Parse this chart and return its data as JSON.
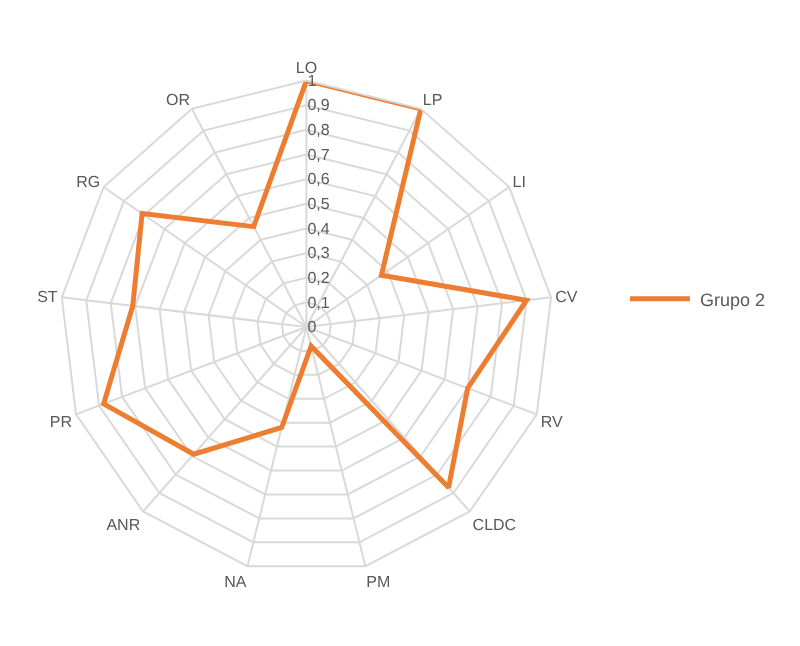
{
  "chart_data": {
    "type": "radar",
    "categories": [
      "LO",
      "LP",
      "LI",
      "CV",
      "RV",
      "CLDC",
      "PM",
      "NA",
      "ANR",
      "PR",
      "ST",
      "RG",
      "OR"
    ],
    "series": [
      {
        "name": "Grupo 2",
        "color": "#ed7d31",
        "values": [
          1,
          1,
          0.37,
          0.9,
          0.7,
          0.87,
          0.08,
          0.42,
          0.69,
          0.88,
          0.71,
          0.81,
          0.46
        ]
      }
    ],
    "ylim": [
      0,
      1
    ],
    "yticks": [
      0,
      {
        "value": 0.1,
        "label": "0,1"
      },
      {
        "value": 0.2,
        "label": "0,2"
      },
      {
        "value": 0.3,
        "label": "0,3"
      },
      {
        "value": 0.4,
        "label": "0,4"
      },
      {
        "value": 0.5,
        "label": "0,5"
      },
      {
        "value": 0.6,
        "label": "0,6"
      },
      {
        "value": 0.7,
        "label": "0,7"
      },
      {
        "value": 0.8,
        "label": "0,8"
      },
      {
        "value": 0.9,
        "label": "0,9"
      },
      1
    ],
    "grid": true,
    "legend": "right",
    "marker": "none",
    "line_style": "solid"
  }
}
